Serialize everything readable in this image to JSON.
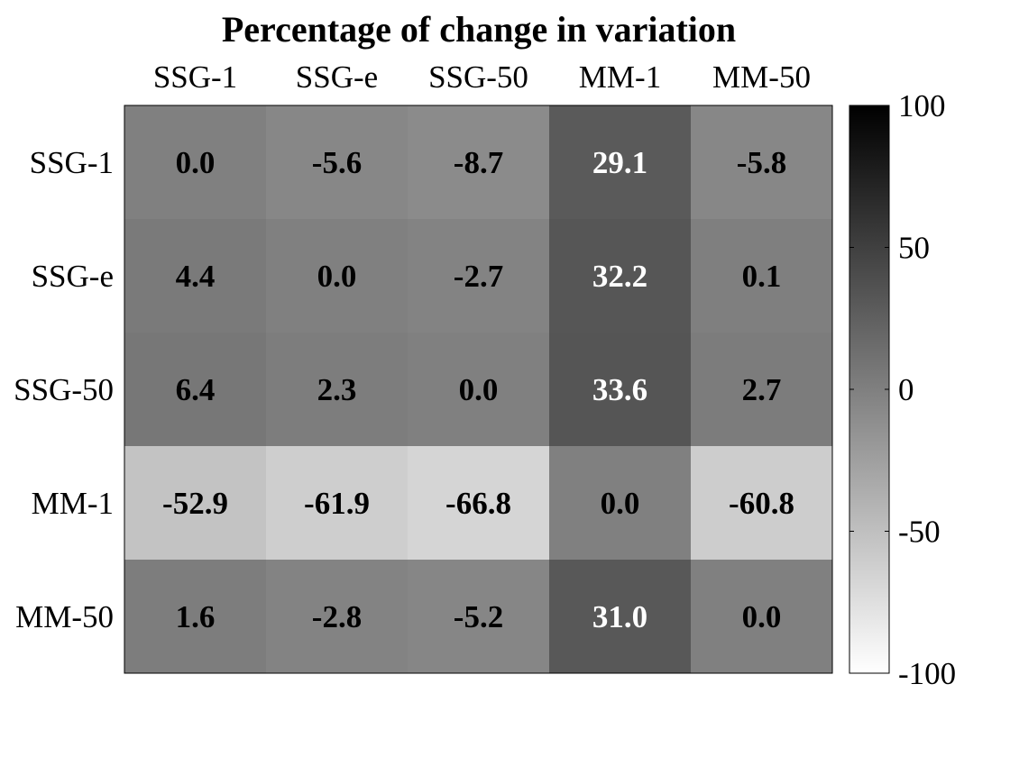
{
  "chart_data": {
    "type": "heatmap",
    "title": "Percentage of change in variation",
    "x_categories": [
      "SSG-1",
      "SSG-e",
      "SSG-50",
      "MM-1",
      "MM-50"
    ],
    "y_categories": [
      "SSG-1",
      "SSG-e",
      "SSG-50",
      "MM-1",
      "MM-50"
    ],
    "values": [
      [
        0.0,
        -5.6,
        -8.7,
        29.1,
        -5.8
      ],
      [
        4.4,
        0.0,
        -2.7,
        32.2,
        0.1
      ],
      [
        6.4,
        2.3,
        0.0,
        33.6,
        2.7
      ],
      [
        -52.9,
        -61.9,
        -66.8,
        0.0,
        -60.8
      ],
      [
        1.6,
        -2.8,
        -5.2,
        31.0,
        0.0
      ]
    ],
    "value_labels": [
      [
        "0.0",
        "-5.6",
        "-8.7",
        "29.1",
        "-5.8"
      ],
      [
        "4.4",
        "0.0",
        "-2.7",
        "32.2",
        "0.1"
      ],
      [
        "6.4",
        "2.3",
        "0.0",
        "33.6",
        "2.7"
      ],
      [
        "-52.9",
        "-61.9",
        "-66.8",
        "0.0",
        "-60.8"
      ],
      [
        "1.6",
        "-2.8",
        "-5.2",
        "31.0",
        "0.0"
      ]
    ],
    "colorbar": {
      "range": [
        -100,
        100
      ],
      "ticks": [
        100,
        50,
        0,
        -50,
        -100
      ],
      "tick_labels": [
        "100",
        "50",
        "0",
        "-50",
        "-100"
      ],
      "colormap": "gray-reversed",
      "high_color": "#000000",
      "low_color": "#ffffff"
    }
  }
}
